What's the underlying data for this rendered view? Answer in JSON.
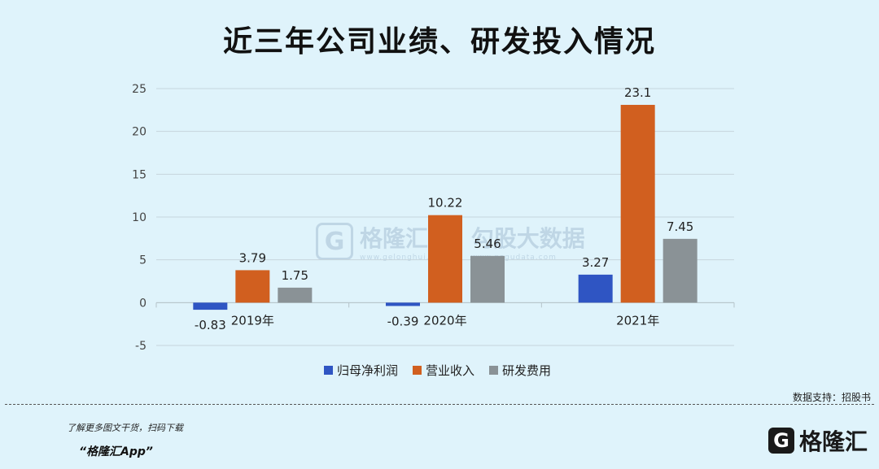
{
  "page": {
    "title": "近三年公司业绩、研发投入情况",
    "source": "数据支持：招股书",
    "footer_note": "了解更多图文干货，扫码下载",
    "footer_app": "“格隆汇App”",
    "brand_logo": "G",
    "brand_name": "格隆汇",
    "watermark_logo": "G",
    "watermark_text": "格隆汇",
    "watermark_sub": "www.gelonghui.com",
    "watermark_text2": "勾股大数据",
    "watermark_sub2": "www.gogudata.com"
  },
  "chart_data": {
    "type": "bar",
    "categories": [
      "2019年",
      "2020年",
      "2021年"
    ],
    "series": [
      {
        "name": "归母净利润",
        "color": "#2f55c3",
        "values": [
          -0.83,
          -0.39,
          3.27
        ]
      },
      {
        "name": "营业收入",
        "color": "#d15f1f",
        "values": [
          3.79,
          10.22,
          23.1
        ]
      },
      {
        "name": "研发费用",
        "color": "#8a9296",
        "values": [
          1.75,
          5.46,
          7.45
        ]
      }
    ],
    "ylim": [
      -5,
      25
    ],
    "yticks": [
      -5,
      0,
      5,
      10,
      15,
      20,
      25
    ],
    "grid": true,
    "legend": "bottom",
    "title": "近三年公司业绩、研发投入情况",
    "xlabel": "",
    "ylabel": ""
  }
}
